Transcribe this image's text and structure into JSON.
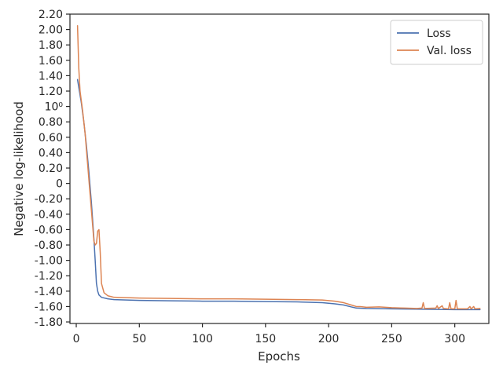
{
  "chart_data": {
    "type": "line",
    "xlabel": "Epochs",
    "ylabel": "Negative log-likelihood",
    "xlim": [
      -5,
      327
    ],
    "ylim": [
      -1.82,
      2.2
    ],
    "x_ticks": [
      0,
      50,
      100,
      150,
      200,
      250,
      300
    ],
    "x_tick_labels": [
      "0",
      "50",
      "100",
      "150",
      "200",
      "250",
      "300"
    ],
    "y_ticks": [
      2.2,
      2.0,
      1.8,
      1.6,
      1.4,
      1.2,
      1.0,
      0.8,
      0.6,
      0.4,
      0.2,
      0.0,
      -0.2,
      -0.4,
      -0.6,
      -0.8,
      -1.0,
      -1.2,
      -1.4,
      -1.6,
      -1.8
    ],
    "y_tick_labels": [
      "2.20",
      "2.00",
      "1.80",
      "1.60",
      "1.40",
      "1.20",
      "10⁰",
      "0.80",
      "0.60",
      "0.40",
      "0.20",
      "0",
      "-0.20",
      "-0.40",
      "-0.60",
      "-0.80",
      "-1.00",
      "-1.20",
      "-1.40",
      "-1.60",
      "-1.80"
    ],
    "grid": false,
    "legend_position": "top-right",
    "series": [
      {
        "name": "Loss",
        "color": "#4c72b0",
        "points": [
          [
            1,
            1.35
          ],
          [
            2,
            1.25
          ],
          [
            4,
            1.05
          ],
          [
            6,
            0.8
          ],
          [
            8,
            0.5
          ],
          [
            10,
            0.15
          ],
          [
            12,
            -0.25
          ],
          [
            14,
            -0.72
          ],
          [
            15,
            -1.0
          ],
          [
            16,
            -1.3
          ],
          [
            17,
            -1.4
          ],
          [
            18,
            -1.45
          ],
          [
            20,
            -1.48
          ],
          [
            25,
            -1.5
          ],
          [
            30,
            -1.51
          ],
          [
            40,
            -1.515
          ],
          [
            50,
            -1.52
          ],
          [
            75,
            -1.525
          ],
          [
            100,
            -1.53
          ],
          [
            125,
            -1.53
          ],
          [
            150,
            -1.535
          ],
          [
            175,
            -1.54
          ],
          [
            195,
            -1.55
          ],
          [
            205,
            -1.565
          ],
          [
            212,
            -1.58
          ],
          [
            218,
            -1.605
          ],
          [
            222,
            -1.62
          ],
          [
            230,
            -1.625
          ],
          [
            250,
            -1.63
          ],
          [
            275,
            -1.635
          ],
          [
            300,
            -1.64
          ],
          [
            320,
            -1.64
          ]
        ]
      },
      {
        "name": "Val. loss",
        "color": "#dd8452",
        "points": [
          [
            1,
            2.05
          ],
          [
            2,
            1.5
          ],
          [
            3,
            1.2
          ],
          [
            5,
            0.95
          ],
          [
            7,
            0.65
          ],
          [
            9,
            0.25
          ],
          [
            11,
            -0.15
          ],
          [
            13,
            -0.55
          ],
          [
            14,
            -0.75
          ],
          [
            15,
            -0.8
          ],
          [
            16,
            -0.78
          ],
          [
            17,
            -0.62
          ],
          [
            18,
            -0.6
          ],
          [
            19,
            -0.9
          ],
          [
            20,
            -1.3
          ],
          [
            22,
            -1.42
          ],
          [
            25,
            -1.46
          ],
          [
            30,
            -1.48
          ],
          [
            40,
            -1.485
          ],
          [
            50,
            -1.49
          ],
          [
            75,
            -1.495
          ],
          [
            100,
            -1.5
          ],
          [
            125,
            -1.5
          ],
          [
            150,
            -1.505
          ],
          [
            175,
            -1.51
          ],
          [
            195,
            -1.515
          ],
          [
            205,
            -1.53
          ],
          [
            212,
            -1.55
          ],
          [
            218,
            -1.58
          ],
          [
            222,
            -1.6
          ],
          [
            225,
            -1.6
          ],
          [
            230,
            -1.61
          ],
          [
            240,
            -1.605
          ],
          [
            250,
            -1.615
          ],
          [
            260,
            -1.62
          ],
          [
            270,
            -1.625
          ],
          [
            274,
            -1.62
          ],
          [
            275,
            -1.55
          ],
          [
            276,
            -1.625
          ],
          [
            285,
            -1.62
          ],
          [
            286,
            -1.59
          ],
          [
            287,
            -1.625
          ],
          [
            290,
            -1.59
          ],
          [
            291,
            -1.625
          ],
          [
            295,
            -1.63
          ],
          [
            296,
            -1.55
          ],
          [
            297,
            -1.63
          ],
          [
            300,
            -1.63
          ],
          [
            301,
            -1.52
          ],
          [
            302,
            -1.63
          ],
          [
            310,
            -1.63
          ],
          [
            312,
            -1.6
          ],
          [
            313,
            -1.63
          ],
          [
            315,
            -1.6
          ],
          [
            316,
            -1.63
          ],
          [
            320,
            -1.625
          ]
        ]
      }
    ]
  }
}
